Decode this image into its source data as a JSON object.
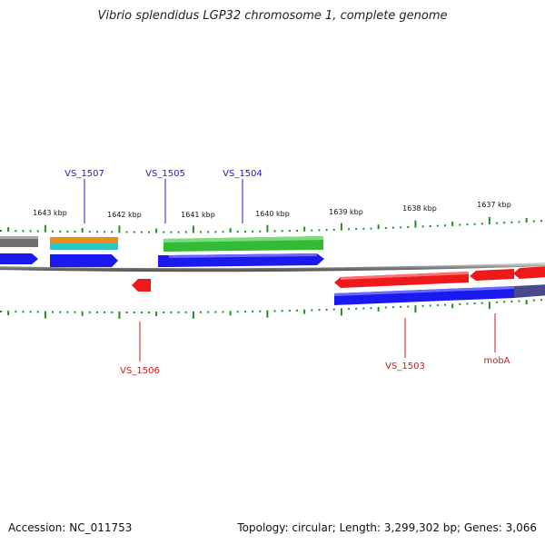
{
  "title": "Vibrio splendidus LGP32 chromosome 1, complete genome",
  "footer": {
    "accession": "Accession: NC_011753",
    "summary": "Topology: circular; Length: 3,299,302 bp; Genes: 3,066"
  },
  "ruler_labels": [
    "1643 kbp",
    "1642 kbp",
    "1641 kbp",
    "1640 kbp",
    "1639 kbp",
    "1638 kbp",
    "1637 kbp"
  ],
  "gene_labels_top": [
    "VS_1507",
    "VS_1505",
    "VS_1504"
  ],
  "gene_labels_bottom": [
    "VS_1506",
    "VS_1503",
    "mobA"
  ],
  "colors": {
    "top_labels": "#1a1acc",
    "bottom_labels": "#cc1a1a",
    "backbone": "#888888",
    "tick": "#1f8f1f",
    "cds_blue": "#1a1aee",
    "cds_red": "#ee1a1a",
    "cds_green": "#33bb33",
    "cds_orange": "#ee8c1a",
    "cds_cyan": "#2ec5c5",
    "cds_gray": "#707070",
    "cds_slate": "#4a4a8a"
  }
}
